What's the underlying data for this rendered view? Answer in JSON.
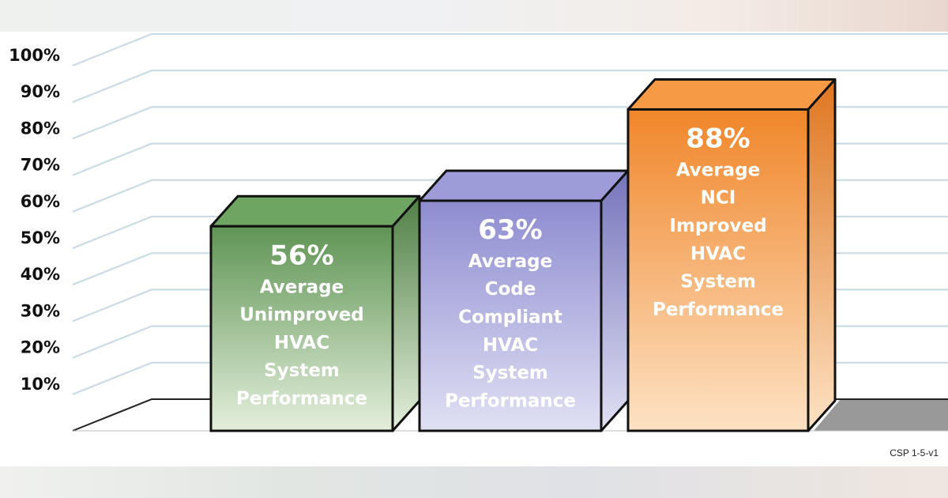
{
  "chart_data": {
    "type": "bar",
    "categories": [
      "Average Unimproved HVAC System Performance",
      "Average Code Compliant HVAC System Performance",
      "Average NCI Improved HVAC System Performance"
    ],
    "values": [
      56,
      63,
      88
    ],
    "value_labels": [
      "56%",
      "63%",
      "88%"
    ],
    "bar_text": [
      [
        "Average",
        "Unimproved",
        "HVAC",
        "System",
        "Performance"
      ],
      [
        "Average",
        "Code",
        "Compliant",
        "HVAC",
        "System",
        "Performance"
      ],
      [
        "Average",
        "NCI",
        "Improved",
        "HVAC",
        "System",
        "Performance"
      ]
    ],
    "y_ticks": [
      "10%",
      "20%",
      "30%",
      "40%",
      "50%",
      "60%",
      "70%",
      "80%",
      "90%",
      "100%"
    ],
    "ylim": [
      0,
      100
    ],
    "grid": true,
    "style": "3d",
    "colors": {
      "bars": [
        {
          "front_top": "#5f9454",
          "front_bottom": "#e4efdc",
          "side": "#4f7f45",
          "top": "#6fa562"
        },
        {
          "front_top": "#8e8cd0",
          "front_bottom": "#e0e0f4",
          "side": "#7674bb",
          "top": "#9d9bd8"
        },
        {
          "front_top": "#f0862a",
          "front_bottom": "#fde2c4",
          "side": "#df7620",
          "top": "#f79a46"
        }
      ],
      "grid": "#c9dbe4",
      "floor": "#999999"
    },
    "footnote": "CSP 1-5-v1"
  }
}
